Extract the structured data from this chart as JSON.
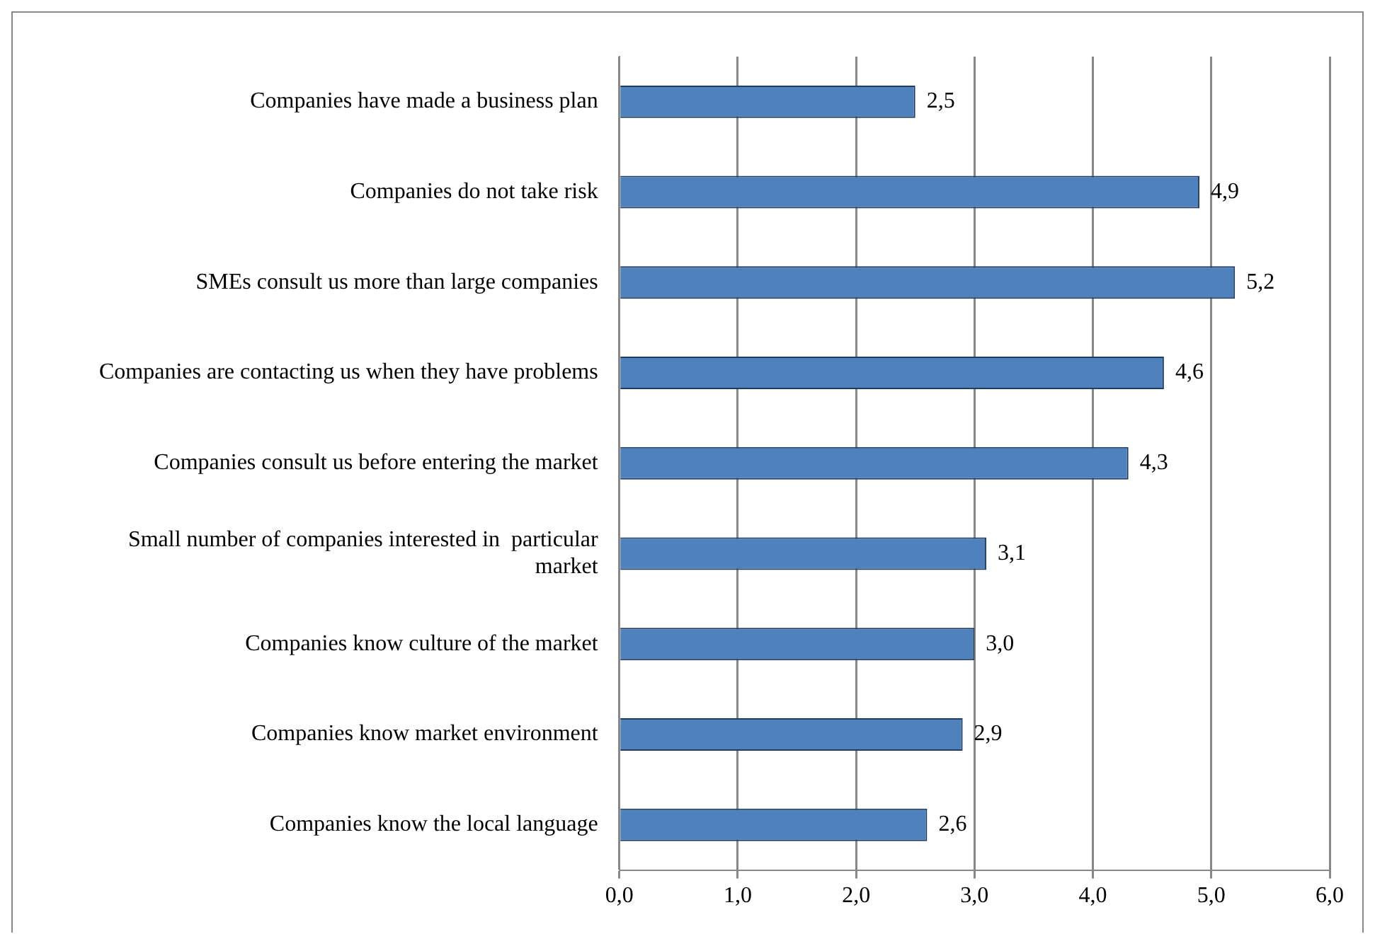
{
  "chart_data": {
    "type": "bar",
    "orientation": "horizontal",
    "categories": [
      "Companies have made a business plan",
      "Companies do not take risk",
      "SMEs consult us more than large companies",
      "Companies are contacting us when they have problems",
      "Companies consult us before entering the market",
      "Small number of companies interested in  particular market",
      "Companies know culture of the market",
      "Companies know market environment",
      "Companies know the local language"
    ],
    "values": [
      2.5,
      4.9,
      5.2,
      4.6,
      4.3,
      3.1,
      3.0,
      2.9,
      2.6
    ],
    "value_labels": [
      "2,5",
      "4,9",
      "5,2",
      "4,6",
      "4,3",
      "3,1",
      "3,0",
      "2,9",
      "2,6"
    ],
    "color": "#4f81bd",
    "xlim": [
      0,
      6
    ],
    "xticks": [
      {
        "value": 0,
        "label": "0,0"
      },
      {
        "value": 1,
        "label": "1,0"
      },
      {
        "value": 2,
        "label": "2,0"
      },
      {
        "value": 3,
        "label": "3,0"
      },
      {
        "value": 4,
        "label": "4,0"
      },
      {
        "value": 5,
        "label": "5,0"
      },
      {
        "value": 6,
        "label": "6,0"
      }
    ],
    "grid": "x",
    "legend": false
  }
}
